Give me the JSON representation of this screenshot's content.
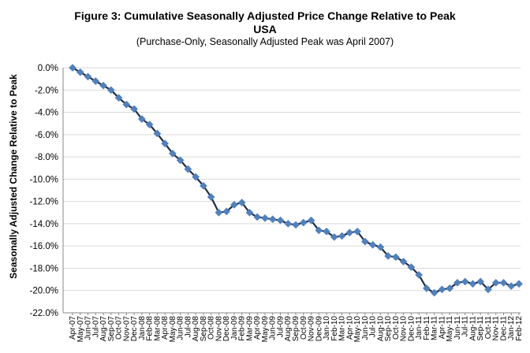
{
  "chart_data": {
    "type": "line",
    "title": "Figure 3: Cumulative Seasonally Adjusted Price Change Relative to Peak",
    "title_line2": "USA",
    "subtitle": "(Purchase-Only, Seasonally Adjusted Peak was April 2007)",
    "xlabel": "",
    "ylabel": "Seasonally Adjusted Change Relative to Peak",
    "ylim": [
      -22.0,
      0.0
    ],
    "y_ticks": [
      "0.0%",
      "-2.0%",
      "-4.0%",
      "-6.0%",
      "-8.0%",
      "-10.0%",
      "-12.0%",
      "-14.0%",
      "-16.0%",
      "-18.0%",
      "-20.0%",
      "-22.0%"
    ],
    "grid": true,
    "categories": [
      "Apr-07",
      "May-07",
      "Jun-07",
      "Jul-07",
      "Aug-07",
      "Sep-07",
      "Oct-07",
      "Nov-07",
      "Dec-07",
      "Jan-08",
      "Feb-08",
      "Mar-08",
      "Apr-08",
      "May-08",
      "Jun-08",
      "Jul-08",
      "Aug-08",
      "Sep-08",
      "Oct-08",
      "Nov-08",
      "Dec-08",
      "Jan-09",
      "Feb-09",
      "Mar-09",
      "Apr-09",
      "May-09",
      "Jun-09",
      "Jul-09",
      "Aug-09",
      "Sep-09",
      "Oct-09",
      "Nov-09",
      "Dec-09",
      "Jan-10",
      "Feb-10",
      "Mar-10",
      "Apr-10",
      "May-10",
      "Jun-10",
      "Jul-10",
      "Aug-10",
      "Sep-10",
      "Oct-10",
      "Nov-10",
      "Dec-10",
      "Jan-11",
      "Feb-11",
      "Mar-11",
      "Apr-11",
      "May-11",
      "Jun-11",
      "Jul-11",
      "Aug-11",
      "Sep-11",
      "Oct-11",
      "Nov-11",
      "Dec-11",
      "Jan-12",
      "Feb-12"
    ],
    "values": [
      0.0,
      -0.4,
      -0.8,
      -1.2,
      -1.6,
      -2.0,
      -2.7,
      -3.3,
      -3.7,
      -4.6,
      -5.1,
      -5.9,
      -6.8,
      -7.7,
      -8.3,
      -9.1,
      -9.8,
      -10.6,
      -11.6,
      -13.0,
      -12.9,
      -12.3,
      -12.1,
      -13.0,
      -13.4,
      -13.5,
      -13.6,
      -13.7,
      -14.0,
      -14.1,
      -13.9,
      -13.7,
      -14.6,
      -14.7,
      -15.2,
      -15.1,
      -14.8,
      -14.7,
      -15.6,
      -15.9,
      -16.1,
      -16.9,
      -17.0,
      -17.4,
      -17.9,
      -18.6,
      -19.8,
      -20.2,
      -19.9,
      -19.8,
      -19.3,
      -19.2,
      -19.4,
      -19.2,
      -19.9,
      -19.3,
      -19.3,
      -19.6,
      -19.4
    ],
    "colors": {
      "line": "#1f2d45",
      "marker": "#4f81bd",
      "grid": "#d9d9d9",
      "axis": "#888888"
    }
  }
}
